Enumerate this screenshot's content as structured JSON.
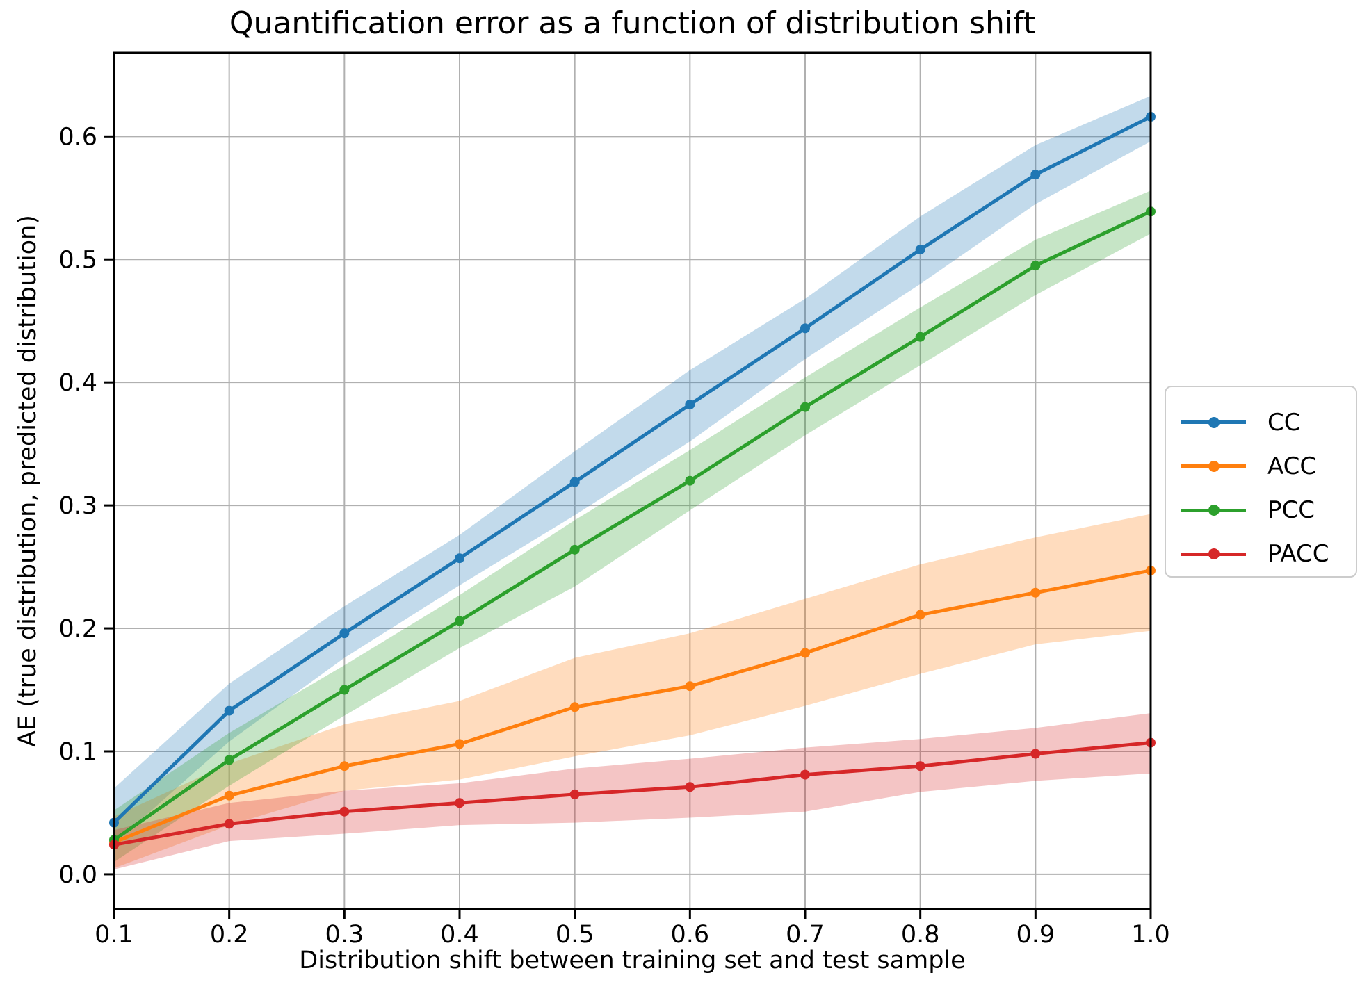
{
  "title": "Quantification error as a function of distribution shift",
  "axes": {
    "x_label": "Distribution shift between training set and test sample",
    "y_label": "AE (true distribution, predicted distribution)",
    "x_tick_labels": [
      "0.1",
      "0.2",
      "0.3",
      "0.4",
      "0.5",
      "0.6",
      "0.7",
      "0.8",
      "0.9",
      "1.0"
    ],
    "y_tick_labels": [
      "0.0",
      "0.1",
      "0.2",
      "0.3",
      "0.4",
      "0.5",
      "0.6"
    ]
  },
  "legend": {
    "items": [
      "CC",
      "ACC",
      "PCC",
      "PACC"
    ]
  },
  "colors": {
    "grid": "#b0b0b0",
    "spine": "#000000",
    "cc": "#1f77b4",
    "acc": "#ff7f0e",
    "pcc": "#2ca02c",
    "pacc": "#d62728"
  },
  "chart_data": {
    "type": "line",
    "title": "Quantification error as a function of distribution shift",
    "xlabel": "Distribution shift between training set and test sample",
    "ylabel": "AE (true distribution, predicted distribution)",
    "x": [
      0.1,
      0.2,
      0.3,
      0.4,
      0.5,
      0.6,
      0.7,
      0.8,
      0.9,
      1.0
    ],
    "x_ticks": [
      0.1,
      0.2,
      0.3,
      0.4,
      0.5,
      0.6,
      0.7,
      0.8,
      0.9,
      1.0
    ],
    "y_ticks": [
      0.0,
      0.1,
      0.2,
      0.3,
      0.4,
      0.5,
      0.6
    ],
    "xlim": [
      0.1,
      1.0
    ],
    "ylim": [
      -0.0283,
      0.668
    ],
    "grid": true,
    "legend_position": "center-right-outside",
    "band_alpha": 0.27,
    "series": [
      {
        "name": "CC",
        "color": "#1f77b4",
        "values": [
          0.042,
          0.133,
          0.196,
          0.257,
          0.319,
          0.382,
          0.444,
          0.508,
          0.569,
          0.616
        ],
        "band_lower": [
          0.025,
          0.108,
          0.176,
          0.235,
          0.292,
          0.352,
          0.419,
          0.48,
          0.545,
          0.596
        ],
        "band_upper": [
          0.07,
          0.155,
          0.218,
          0.276,
          0.344,
          0.41,
          0.468,
          0.535,
          0.593,
          0.633
        ]
      },
      {
        "name": "ACC",
        "color": "#ff7f0e",
        "values": [
          0.026,
          0.064,
          0.088,
          0.106,
          0.136,
          0.153,
          0.18,
          0.211,
          0.229,
          0.247
        ],
        "band_lower": [
          0.005,
          0.04,
          0.068,
          0.077,
          0.096,
          0.113,
          0.137,
          0.163,
          0.187,
          0.198
        ],
        "band_upper": [
          0.047,
          0.09,
          0.122,
          0.141,
          0.176,
          0.196,
          0.224,
          0.252,
          0.274,
          0.293
        ]
      },
      {
        "name": "PCC",
        "color": "#2ca02c",
        "values": [
          0.028,
          0.093,
          0.15,
          0.206,
          0.264,
          0.32,
          0.38,
          0.437,
          0.495,
          0.539
        ],
        "band_lower": [
          0.01,
          0.072,
          0.129,
          0.184,
          0.234,
          0.296,
          0.357,
          0.414,
          0.471,
          0.521
        ],
        "band_upper": [
          0.052,
          0.115,
          0.17,
          0.227,
          0.288,
          0.345,
          0.404,
          0.461,
          0.516,
          0.556
        ]
      },
      {
        "name": "PACC",
        "color": "#d62728",
        "values": [
          0.024,
          0.041,
          0.051,
          0.058,
          0.065,
          0.071,
          0.081,
          0.088,
          0.098,
          0.107
        ],
        "band_lower": [
          0.004,
          0.027,
          0.033,
          0.04,
          0.042,
          0.046,
          0.051,
          0.067,
          0.076,
          0.082
        ],
        "band_upper": [
          0.036,
          0.058,
          0.068,
          0.074,
          0.086,
          0.094,
          0.103,
          0.11,
          0.119,
          0.131
        ]
      }
    ]
  }
}
